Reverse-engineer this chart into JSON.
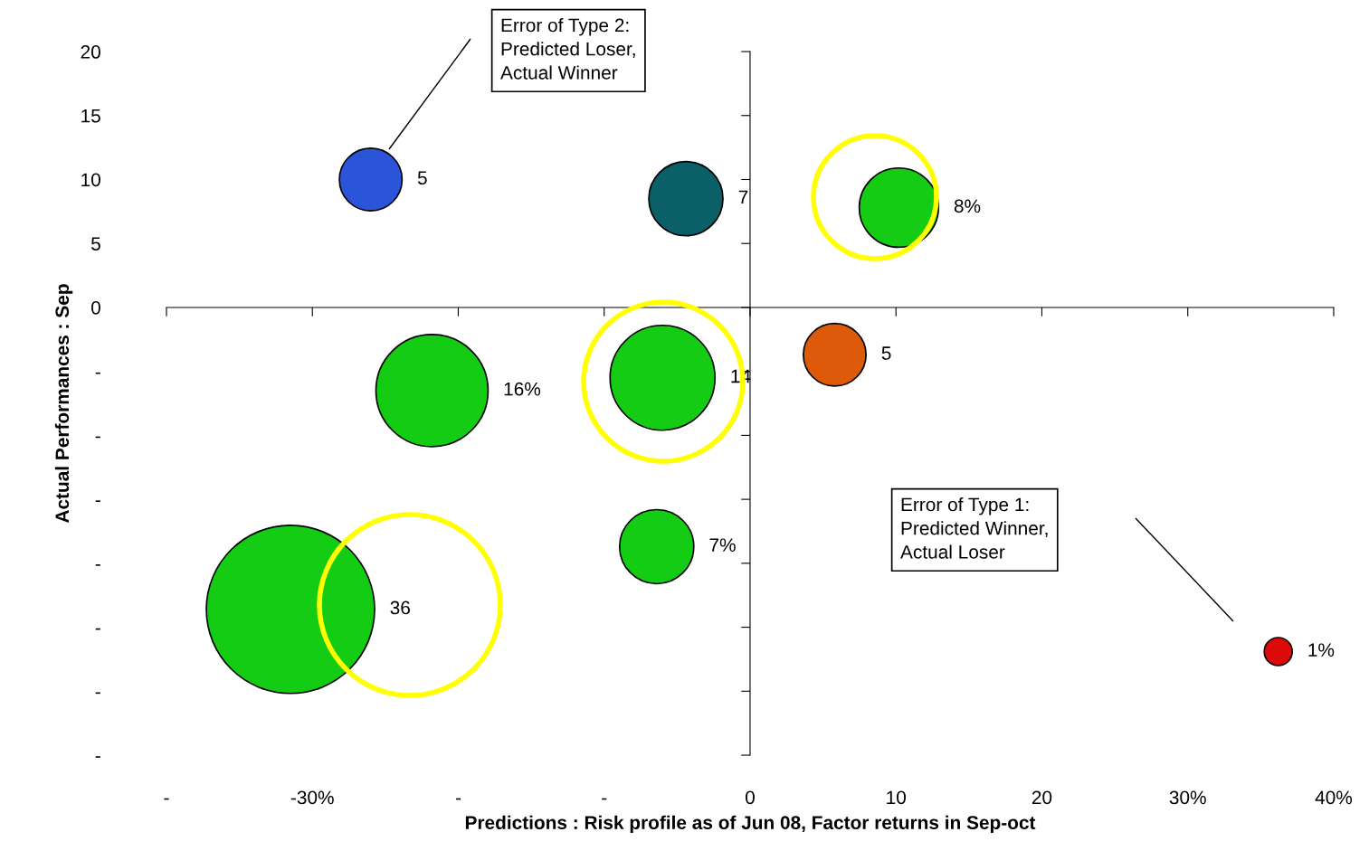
{
  "chart_data": {
    "type": "bubble",
    "xlabel": "Predictions : Risk profile as of Jun 08, Factor returns in Sep-oct",
    "ylabel": "Actual Performances : Sep",
    "xlim": [
      -40,
      40
    ],
    "ylim": [
      -35,
      20
    ],
    "xticks": [
      {
        "value": -40,
        "label": "-"
      },
      {
        "value": -30,
        "label": "-30%"
      },
      {
        "value": -20,
        "label": "-"
      },
      {
        "value": -10,
        "label": "-"
      },
      0,
      10,
      20,
      {
        "value": 30,
        "label": "30%"
      },
      {
        "value": 40,
        "label": "40%"
      }
    ],
    "yticks": [
      20,
      15,
      10,
      5,
      0,
      {
        "value": -5,
        "label": "-"
      },
      {
        "value": -10,
        "label": "-"
      },
      {
        "value": -15,
        "label": "-"
      },
      {
        "value": -20,
        "label": "-"
      },
      {
        "value": -25,
        "label": "-"
      },
      {
        "value": -30,
        "label": "-"
      },
      {
        "value": -35,
        "label": "-"
      }
    ],
    "marker": "circle",
    "series": [
      {
        "x": [
          -26,
          -4.4,
          10.2,
          5.8,
          -21.8,
          -6,
          -6.4,
          -31.5,
          36.2
        ],
        "values": [
          10,
          8.5,
          7.8,
          -3.7,
          -6.5,
          -5.5,
          -18.7,
          -23.6,
          -26.9
        ],
        "sizes": [
          5,
          7,
          8,
          5,
          16,
          14,
          7,
          36,
          1
        ],
        "value_labels": [
          "5",
          "7",
          "8%",
          "5",
          "16%",
          "14",
          "7%",
          "36",
          "1%"
        ],
        "colors": [
          "#2b55d8",
          "#0b5f66",
          "#14cc14",
          "#dd5a0a",
          "#14cc14",
          "#14cc14",
          "#14cc14",
          "#14cc14",
          "#dd0a0a"
        ]
      }
    ],
    "annotations": [
      "Error of Type 2:\nPredicted Loser,\nActual Winner",
      "Error of Type 1:\nPredicted Winner,\nActual Loser"
    ]
  }
}
